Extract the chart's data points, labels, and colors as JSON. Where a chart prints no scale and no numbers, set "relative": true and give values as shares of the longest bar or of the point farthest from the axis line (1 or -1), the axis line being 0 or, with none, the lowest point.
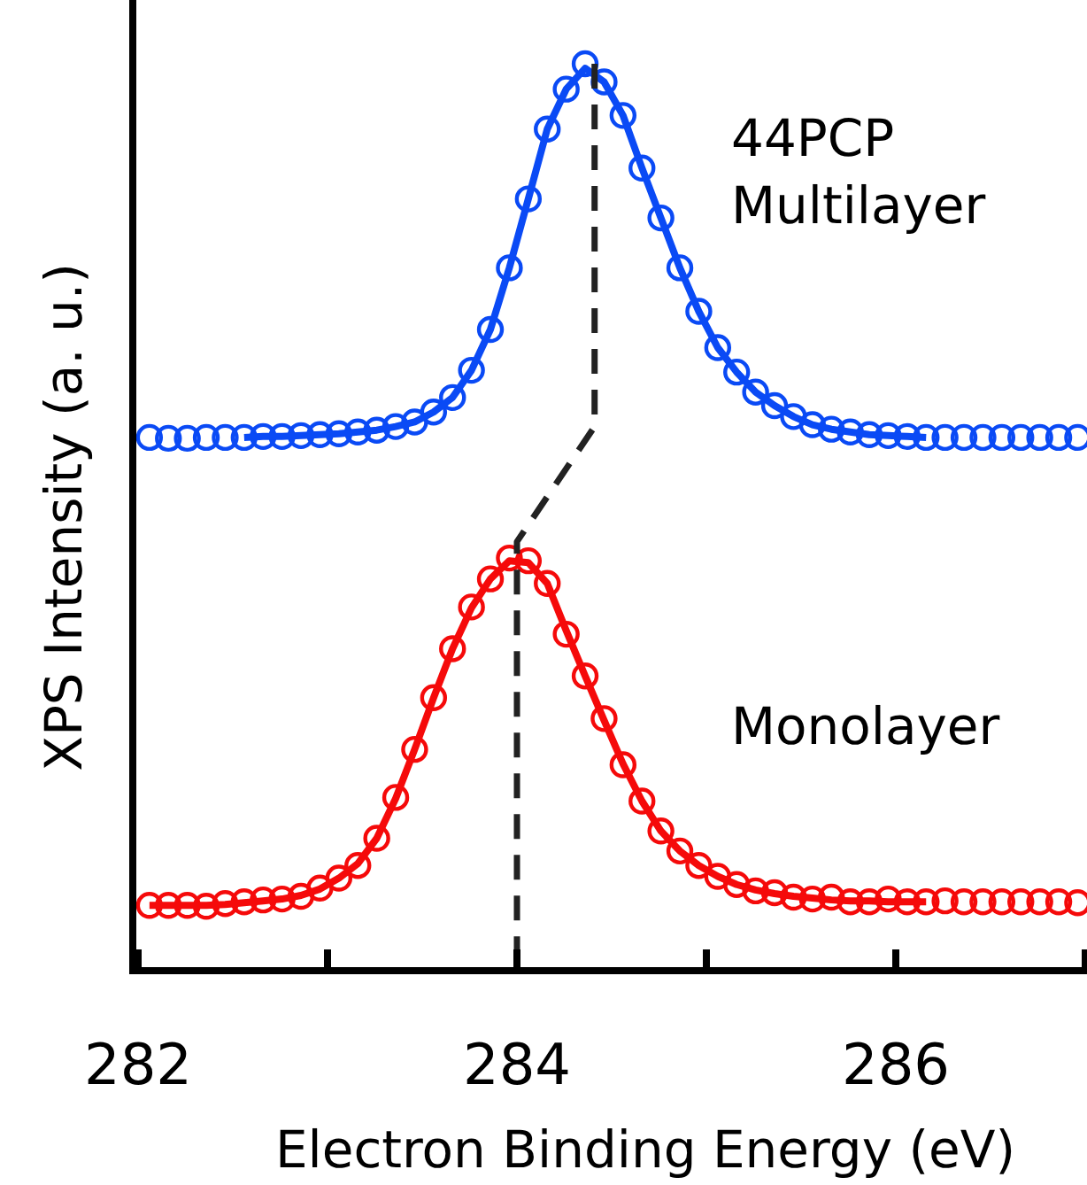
{
  "chart_data": {
    "type": "scatter",
    "relative": true,
    "xlabel": "Electron Binding Energy (eV)",
    "ylabel": "XPS Intensity (a. u.)",
    "xlim": [
      282,
      287
    ],
    "xticks": [
      282,
      {
        "value": 283,
        "label": null
      },
      284,
      {
        "value": 285,
        "label": null
      },
      286,
      {
        "value": 287,
        "label": null
      }
    ],
    "tick_labels": "x",
    "grid": false,
    "annotations": [
      "44PCP\nMultilayer",
      "Monolayer"
    ],
    "series": [
      {
        "marker": "circle",
        "color": "#0a4af5",
        "x": [
          282.06,
          282.16,
          282.26,
          282.36,
          282.46,
          282.56,
          282.66,
          282.76,
          282.86,
          282.96,
          283.06,
          283.16,
          283.26,
          283.36,
          283.46,
          283.56,
          283.66,
          283.76,
          283.86,
          283.96,
          284.06,
          284.16,
          284.26,
          284.36,
          284.46,
          284.56,
          284.66,
          284.76,
          284.86,
          284.96,
          285.06,
          285.16,
          285.26,
          285.36,
          285.46,
          285.56,
          285.66,
          285.76,
          285.86,
          285.96,
          286.06,
          286.16,
          286.26,
          286.36,
          286.46,
          286.56,
          286.66,
          286.76,
          286.86,
          286.96
        ],
        "values": [
          0.588,
          0.587,
          0.587,
          0.588,
          0.588,
          0.588,
          0.589,
          0.589,
          0.59,
          0.591,
          0.592,
          0.594,
          0.596,
          0.6,
          0.605,
          0.616,
          0.632,
          0.662,
          0.707,
          0.775,
          0.851,
          0.928,
          0.972,
          1.0,
          0.98,
          0.943,
          0.885,
          0.83,
          0.775,
          0.727,
          0.687,
          0.66,
          0.638,
          0.623,
          0.611,
          0.602,
          0.597,
          0.594,
          0.591,
          0.59,
          0.589,
          0.588,
          0.588,
          0.588,
          0.588,
          0.588,
          0.588,
          0.588,
          0.588,
          0.588
        ]
      },
      {
        "type": "line",
        "line_style": "solid",
        "color": "#0a4af5",
        "x": [
          282.56,
          282.66,
          282.76,
          282.86,
          282.96,
          283.06,
          283.16,
          283.26,
          283.36,
          283.46,
          283.56,
          283.66,
          283.76,
          283.86,
          283.96,
          284.06,
          284.16,
          284.26,
          284.36,
          284.46,
          284.56,
          284.66,
          284.76,
          284.86,
          284.96,
          285.06,
          285.16,
          285.26,
          285.36,
          285.46,
          285.56,
          285.66,
          285.76,
          285.86,
          285.96,
          286.06,
          286.16
        ],
        "values": [
          0.588,
          0.589,
          0.589,
          0.59,
          0.591,
          0.592,
          0.594,
          0.596,
          0.6,
          0.605,
          0.616,
          0.632,
          0.662,
          0.707,
          0.775,
          0.851,
          0.928,
          0.972,
          0.995,
          0.98,
          0.943,
          0.885,
          0.83,
          0.775,
          0.727,
          0.687,
          0.66,
          0.638,
          0.623,
          0.611,
          0.602,
          0.597,
          0.594,
          0.591,
          0.59,
          0.589,
          0.588
        ]
      },
      {
        "marker": "circle",
        "color": "#f50a0a",
        "x": [
          282.06,
          282.16,
          282.26,
          282.36,
          282.46,
          282.56,
          282.66,
          282.76,
          282.86,
          282.96,
          283.06,
          283.16,
          283.26,
          283.36,
          283.46,
          283.56,
          283.66,
          283.76,
          283.86,
          283.96,
          284.06,
          284.16,
          284.26,
          284.36,
          284.46,
          284.56,
          284.66,
          284.76,
          284.86,
          284.96,
          285.06,
          285.16,
          285.26,
          285.36,
          285.46,
          285.56,
          285.66,
          285.76,
          285.86,
          285.96,
          286.06,
          286.16,
          286.26,
          286.36,
          286.46,
          286.56,
          286.66,
          286.76,
          286.86,
          286.96
        ],
        "values": [
          0.072,
          0.072,
          0.072,
          0.071,
          0.074,
          0.076,
          0.078,
          0.079,
          0.082,
          0.091,
          0.102,
          0.116,
          0.146,
          0.191,
          0.244,
          0.301,
          0.355,
          0.401,
          0.432,
          0.455,
          0.452,
          0.427,
          0.371,
          0.325,
          0.278,
          0.227,
          0.187,
          0.154,
          0.132,
          0.116,
          0.104,
          0.095,
          0.088,
          0.086,
          0.081,
          0.079,
          0.081,
          0.076,
          0.076,
          0.079,
          0.076,
          0.076,
          0.077,
          0.076,
          0.076,
          0.076,
          0.076,
          0.076,
          0.076,
          0.075
        ]
      },
      {
        "type": "line",
        "line_style": "solid",
        "color": "#f50a0a",
        "x": [
          282.06,
          282.16,
          282.26,
          282.36,
          282.46,
          282.56,
          282.66,
          282.76,
          282.86,
          282.96,
          283.06,
          283.16,
          283.26,
          283.36,
          283.46,
          283.56,
          283.66,
          283.76,
          283.86,
          283.96,
          284.06,
          284.16,
          284.26,
          284.36,
          284.46,
          284.56,
          284.66,
          284.76,
          284.86,
          284.96,
          285.06,
          285.16,
          285.26,
          285.36,
          285.46,
          285.56,
          285.66,
          285.76,
          285.86,
          285.96,
          286.06,
          286.16
        ],
        "values": [
          0.072,
          0.072,
          0.072,
          0.072,
          0.073,
          0.075,
          0.077,
          0.079,
          0.083,
          0.09,
          0.102,
          0.118,
          0.146,
          0.19,
          0.244,
          0.301,
          0.355,
          0.4,
          0.432,
          0.452,
          0.45,
          0.427,
          0.375,
          0.325,
          0.276,
          0.228,
          0.187,
          0.154,
          0.132,
          0.116,
          0.104,
          0.095,
          0.089,
          0.085,
          0.082,
          0.08,
          0.078,
          0.077,
          0.077,
          0.076,
          0.076,
          0.076
        ]
      },
      {
        "type": "line",
        "line_style": "dashed",
        "color": "#222222",
        "x": [
          284.41,
          284.41,
          284.0,
          284.0
        ],
        "values": [
          1.0,
          0.6,
          0.473,
          0
        ]
      }
    ]
  }
}
